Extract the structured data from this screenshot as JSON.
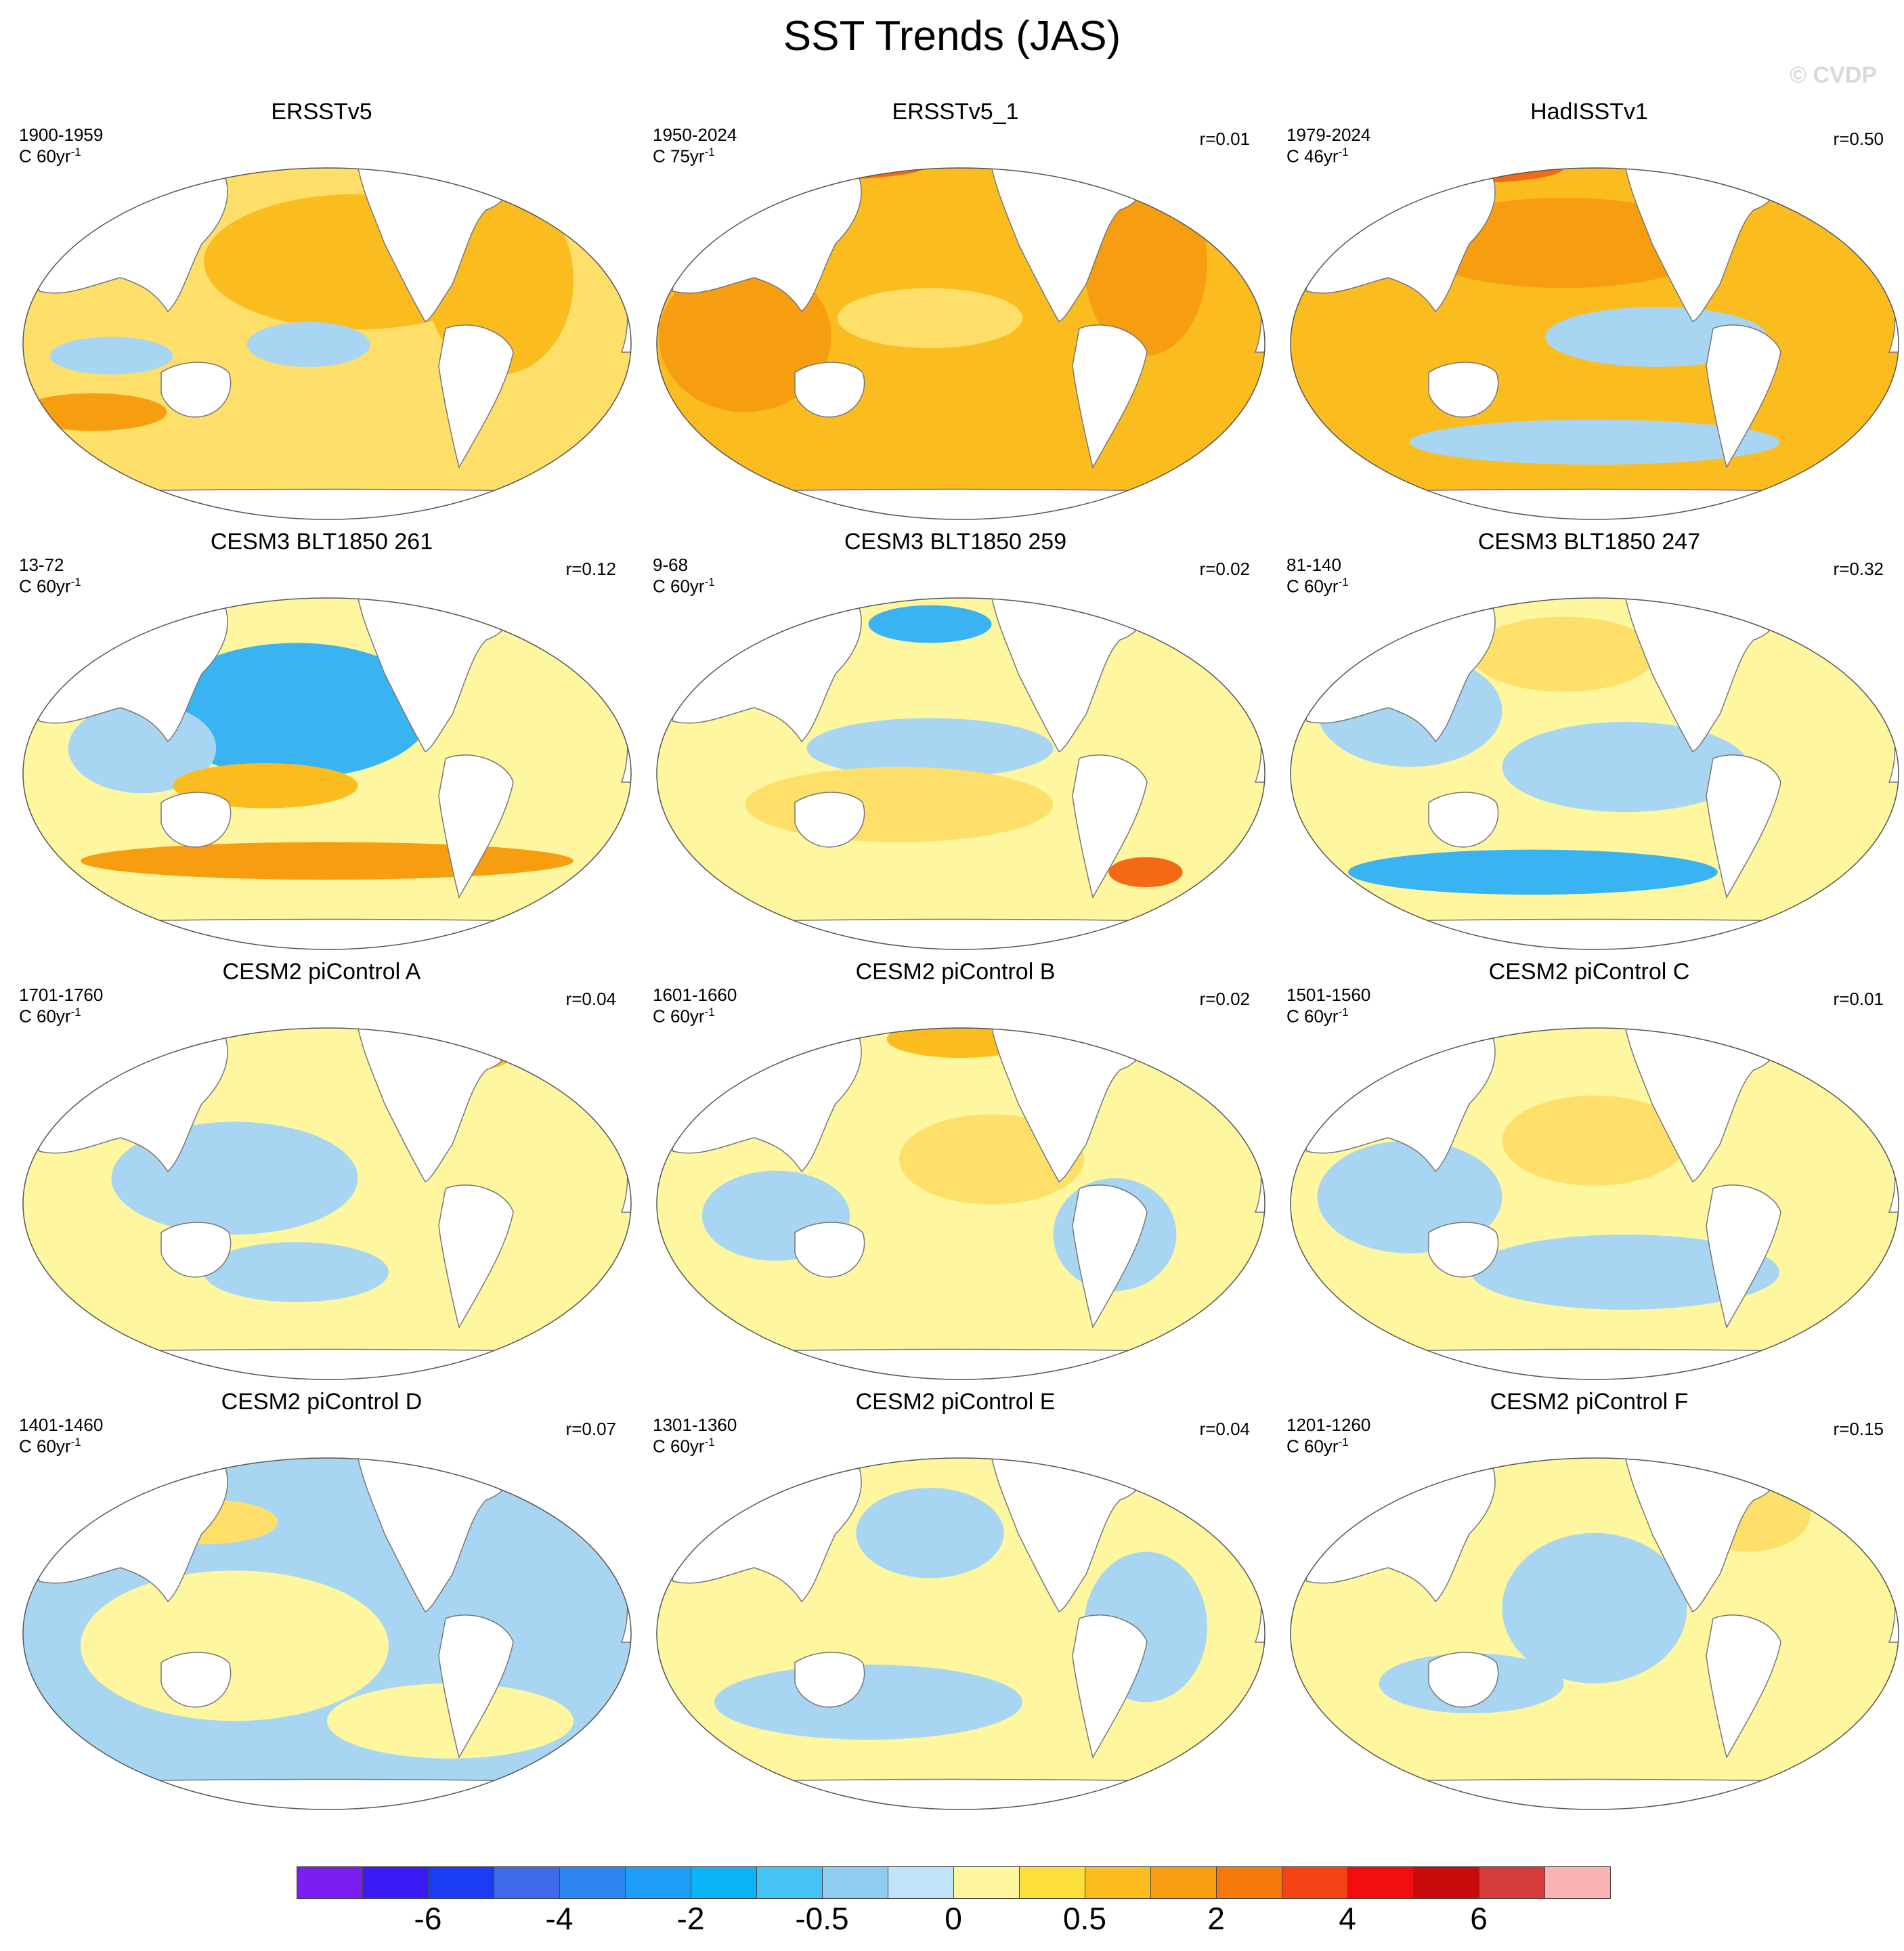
{
  "title": "SST Trends (JAS)",
  "watermark": "© CVDP",
  "panels": [
    {
      "title": "ERSSTv5",
      "period": "1900-1959",
      "units": "C 60yr",
      "r": "",
      "base": "#fddf6a",
      "blobs": [
        [
          "#fbbc20",
          0.55,
          0.3,
          0.25,
          0.18
        ],
        [
          "#fbbc20",
          0.78,
          0.35,
          0.12,
          0.25
        ],
        [
          "#a8d6f2",
          0.47,
          0.52,
          0.1,
          0.06
        ],
        [
          "#a8d6f2",
          0.15,
          0.55,
          0.1,
          0.05
        ],
        [
          "#f79d10",
          0.12,
          0.7,
          0.12,
          0.05
        ]
      ]
    },
    {
      "title": "ERSSTv5_1",
      "period": "1950-2024",
      "units": "C 75yr",
      "r": "r=0.01",
      "base": "#fbbc20",
      "blobs": [
        [
          "#f79d10",
          0.15,
          0.5,
          0.14,
          0.2
        ],
        [
          "#f79d10",
          0.8,
          0.3,
          0.1,
          0.25
        ],
        [
          "#f46a14",
          0.3,
          0.04,
          0.15,
          0.04
        ],
        [
          "#fddf6a",
          0.45,
          0.45,
          0.15,
          0.08
        ]
      ]
    },
    {
      "title": "HadISSTv1",
      "period": "1979-2024",
      "units": "C 46yr",
      "r": "r=0.50",
      "base": "#fbbc20",
      "blobs": [
        [
          "#f79d10",
          0.45,
          0.25,
          0.25,
          0.12
        ],
        [
          "#a8d6f2",
          0.6,
          0.5,
          0.18,
          0.08
        ],
        [
          "#a8d6f2",
          0.5,
          0.78,
          0.3,
          0.06
        ],
        [
          "#f46a14",
          0.3,
          0.05,
          0.15,
          0.04
        ]
      ]
    },
    {
      "title": "CESM3 BLT1850 261",
      "period": "13-72",
      "units": "C 60yr",
      "r": "r=0.12",
      "base": "#fef7a0",
      "blobs": [
        [
          "#39b3f2",
          0.45,
          0.35,
          0.22,
          0.18
        ],
        [
          "#a8d6f2",
          0.2,
          0.45,
          0.12,
          0.12
        ],
        [
          "#f79d10",
          0.5,
          0.75,
          0.4,
          0.05
        ],
        [
          "#fbbc20",
          0.4,
          0.55,
          0.15,
          0.06
        ]
      ]
    },
    {
      "title": "CESM3 BLT1850 259",
      "period": "9-68",
      "units": "C 60yr",
      "r": "r=0.02",
      "base": "#fef7a0",
      "blobs": [
        [
          "#a8d6f2",
          0.45,
          0.45,
          0.2,
          0.08
        ],
        [
          "#fddf6a",
          0.4,
          0.6,
          0.25,
          0.1
        ],
        [
          "#39b3f2",
          0.45,
          0.12,
          0.1,
          0.05
        ],
        [
          "#f46a14",
          0.8,
          0.78,
          0.06,
          0.04
        ]
      ]
    },
    {
      "title": "CESM3 BLT1850 247",
      "period": "81-140",
      "units": "C 60yr",
      "r": "r=0.32",
      "base": "#fef7a0",
      "blobs": [
        [
          "#a8d6f2",
          0.2,
          0.35,
          0.15,
          0.15
        ],
        [
          "#39b3f2",
          0.4,
          0.78,
          0.3,
          0.06
        ],
        [
          "#a8d6f2",
          0.55,
          0.5,
          0.2,
          0.12
        ],
        [
          "#fddf6a",
          0.45,
          0.2,
          0.15,
          0.1
        ]
      ]
    },
    {
      "title": "CESM2 piControl A",
      "period": "1701-1760",
      "units": "C 60yr",
      "r": "r=0.04",
      "base": "#fef7a0",
      "blobs": [
        [
          "#a8d6f2",
          0.35,
          0.45,
          0.2,
          0.15
        ],
        [
          "#a8d6f2",
          0.45,
          0.7,
          0.15,
          0.08
        ],
        [
          "#fbbc20",
          0.75,
          0.1,
          0.06,
          0.06
        ]
      ]
    },
    {
      "title": "CESM2 piControl B",
      "period": "1601-1660",
      "units": "C 60yr",
      "r": "r=0.02",
      "base": "#fef7a0",
      "blobs": [
        [
          "#a8d6f2",
          0.2,
          0.55,
          0.12,
          0.12
        ],
        [
          "#fddf6a",
          0.55,
          0.4,
          0.15,
          0.12
        ],
        [
          "#a8d6f2",
          0.75,
          0.6,
          0.1,
          0.15
        ],
        [
          "#fbbc20",
          0.5,
          0.08,
          0.12,
          0.05
        ]
      ]
    },
    {
      "title": "CESM2 piControl C",
      "period": "1501-1560",
      "units": "C 60yr",
      "r": "r=0.01",
      "base": "#fef7a0",
      "blobs": [
        [
          "#a8d6f2",
          0.2,
          0.5,
          0.15,
          0.15
        ],
        [
          "#a8d6f2",
          0.55,
          0.7,
          0.25,
          0.1
        ],
        [
          "#fddf6a",
          0.5,
          0.35,
          0.15,
          0.12
        ],
        [
          "#f79d10",
          0.25,
          0.05,
          0.12,
          0.04
        ]
      ]
    },
    {
      "title": "CESM2 piControl D",
      "period": "1401-1460",
      "units": "C 60yr",
      "r": "r=0.07",
      "base": "#a8d6f2",
      "blobs": [
        [
          "#fef7a0",
          0.35,
          0.55,
          0.25,
          0.2
        ],
        [
          "#fddf6a",
          0.3,
          0.22,
          0.12,
          0.06
        ],
        [
          "#fef7a0",
          0.7,
          0.75,
          0.2,
          0.1
        ]
      ]
    },
    {
      "title": "CESM2 piControl E",
      "period": "1301-1360",
      "units": "C 60yr",
      "r": "r=0.04",
      "base": "#fef7a0",
      "blobs": [
        [
          "#a8d6f2",
          0.45,
          0.25,
          0.12,
          0.12
        ],
        [
          "#a8d6f2",
          0.35,
          0.7,
          0.25,
          0.1
        ],
        [
          "#a8d6f2",
          0.8,
          0.5,
          0.1,
          0.2
        ],
        [
          "#f79d10",
          0.72,
          0.08,
          0.07,
          0.06
        ]
      ]
    },
    {
      "title": "CESM2 piControl F",
      "period": "1201-1260",
      "units": "C 60yr",
      "r": "r=0.15",
      "base": "#fef7a0",
      "blobs": [
        [
          "#a8d6f2",
          0.5,
          0.45,
          0.15,
          0.2
        ],
        [
          "#fddf6a",
          0.75,
          0.2,
          0.1,
          0.1
        ],
        [
          "#a8d6f2",
          0.3,
          0.65,
          0.15,
          0.08
        ]
      ]
    }
  ],
  "colorbar": {
    "colors": [
      "#7a1ef0",
      "#3a1af5",
      "#1a3cf5",
      "#3e6ae8",
      "#2f85f0",
      "#1e9ef7",
      "#0cb4f7",
      "#45c3f5",
      "#8ecdef",
      "#bfe3f7",
      "#fef7a0",
      "#fddf3c",
      "#fbbc20",
      "#f79d10",
      "#f67a0a",
      "#f44314",
      "#f20e0e",
      "#c80b0b",
      "#d63b3b",
      "#f9b3b3"
    ],
    "labels": [
      "-6",
      "-4",
      "-2",
      "-0.5",
      "0",
      "0.5",
      "2",
      "4",
      "6"
    ]
  }
}
